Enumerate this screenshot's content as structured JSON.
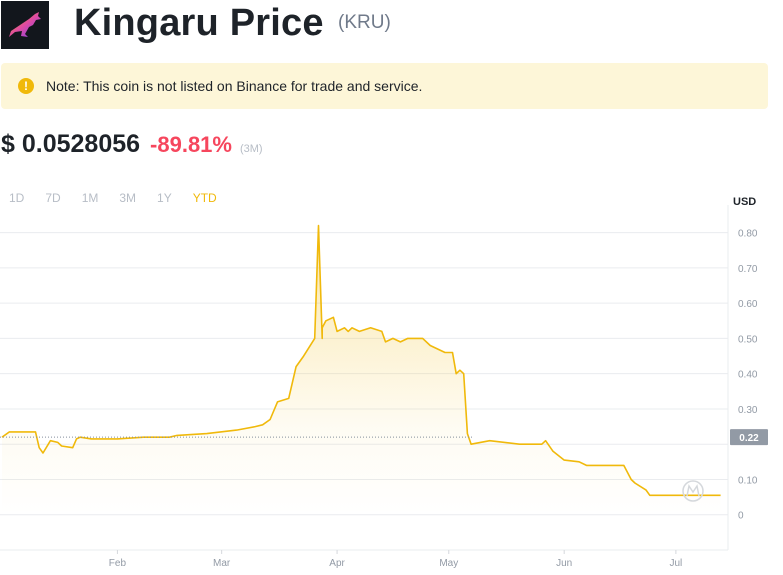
{
  "header": {
    "title": "Kingaru Price",
    "ticker": "(KRU)"
  },
  "note": {
    "icon": "exclamation-icon",
    "text": "Note: This coin is not listed on Binance for trade and service."
  },
  "price": {
    "value": "$ 0.0528056",
    "change": "-89.81%",
    "period": "(3M)"
  },
  "ranges": {
    "items": [
      "1D",
      "7D",
      "1M",
      "3M",
      "1Y",
      "YTD"
    ],
    "active": "YTD"
  },
  "colors": {
    "accent": "#f0b90b",
    "negative": "#f6465d",
    "line": "#f0b90b",
    "grid": "#eaecef",
    "current_badge": "#929aa5"
  },
  "chart_data": {
    "type": "area",
    "unit": "USD",
    "ylim": [
      -0.1,
      0.85
    ],
    "yticks": [
      0,
      0.1,
      0.2,
      0.3,
      0.4,
      0.5,
      0.6,
      0.7,
      0.8
    ],
    "ytick_labels": [
      "0",
      "0.10",
      "",
      "0.30",
      "0.40",
      "0.50",
      "0.60",
      "0.70",
      "0.80"
    ],
    "xlim": [
      "2022-01-01",
      "2022-07-15"
    ],
    "xticks": [
      {
        "date": "2022-02-01",
        "label": "Feb"
      },
      {
        "date": "2022-03-01",
        "label": "Mar"
      },
      {
        "date": "2022-04-01",
        "label": "Apr"
      },
      {
        "date": "2022-05-01",
        "label": "May"
      },
      {
        "date": "2022-06-01",
        "label": "Jun"
      },
      {
        "date": "2022-07-01",
        "label": "Jul"
      }
    ],
    "current_label": "0.22",
    "current_value": 0.22,
    "grid": true,
    "series": [
      {
        "x": [
          "2022-01-01",
          "2022-01-03",
          "2022-01-10",
          "2022-01-11",
          "2022-01-12",
          "2022-01-14",
          "2022-01-16",
          "2022-01-17",
          "2022-01-20",
          "2022-01-21",
          "2022-01-22",
          "2022-01-25",
          "2022-02-01",
          "2022-02-08",
          "2022-02-10",
          "2022-02-15",
          "2022-02-17",
          "2022-02-25",
          "2022-03-05",
          "2022-03-10",
          "2022-03-12",
          "2022-03-14",
          "2022-03-16",
          "2022-03-19",
          "2022-03-21",
          "2022-03-23",
          "2022-03-26",
          "2022-03-27",
          "2022-03-28",
          "2022-03-28",
          "2022-03-29",
          "2022-03-31",
          "2022-04-01",
          "2022-04-03",
          "2022-04-04",
          "2022-04-05",
          "2022-04-07",
          "2022-04-10",
          "2022-04-13",
          "2022-04-14",
          "2022-04-16",
          "2022-04-18",
          "2022-04-20",
          "2022-04-24",
          "2022-04-26",
          "2022-04-30",
          "2022-05-02",
          "2022-05-03",
          "2022-05-04",
          "2022-05-05",
          "2022-05-06",
          "2022-05-07",
          "2022-05-12",
          "2022-05-20",
          "2022-05-26",
          "2022-05-27",
          "2022-05-29",
          "2022-06-01",
          "2022-06-05",
          "2022-06-07",
          "2022-06-11",
          "2022-06-17",
          "2022-06-19",
          "2022-06-20",
          "2022-06-23",
          "2022-06-24",
          "2022-06-26",
          "2022-07-02",
          "2022-07-08",
          "2022-07-13"
        ],
        "y": [
          0.22,
          0.235,
          0.235,
          0.19,
          0.175,
          0.21,
          0.205,
          0.195,
          0.19,
          0.215,
          0.22,
          0.215,
          0.215,
          0.22,
          0.22,
          0.22,
          0.225,
          0.23,
          0.24,
          0.25,
          0.255,
          0.27,
          0.32,
          0.33,
          0.42,
          0.45,
          0.5,
          0.82,
          0.5,
          0.53,
          0.55,
          0.56,
          0.52,
          0.53,
          0.52,
          0.53,
          0.52,
          0.53,
          0.52,
          0.49,
          0.5,
          0.49,
          0.5,
          0.5,
          0.48,
          0.46,
          0.46,
          0.4,
          0.41,
          0.4,
          0.23,
          0.2,
          0.21,
          0.2,
          0.2,
          0.21,
          0.18,
          0.155,
          0.15,
          0.14,
          0.14,
          0.14,
          0.1,
          0.09,
          0.07,
          0.055,
          0.055,
          0.055,
          0.055,
          0.055
        ]
      }
    ]
  }
}
